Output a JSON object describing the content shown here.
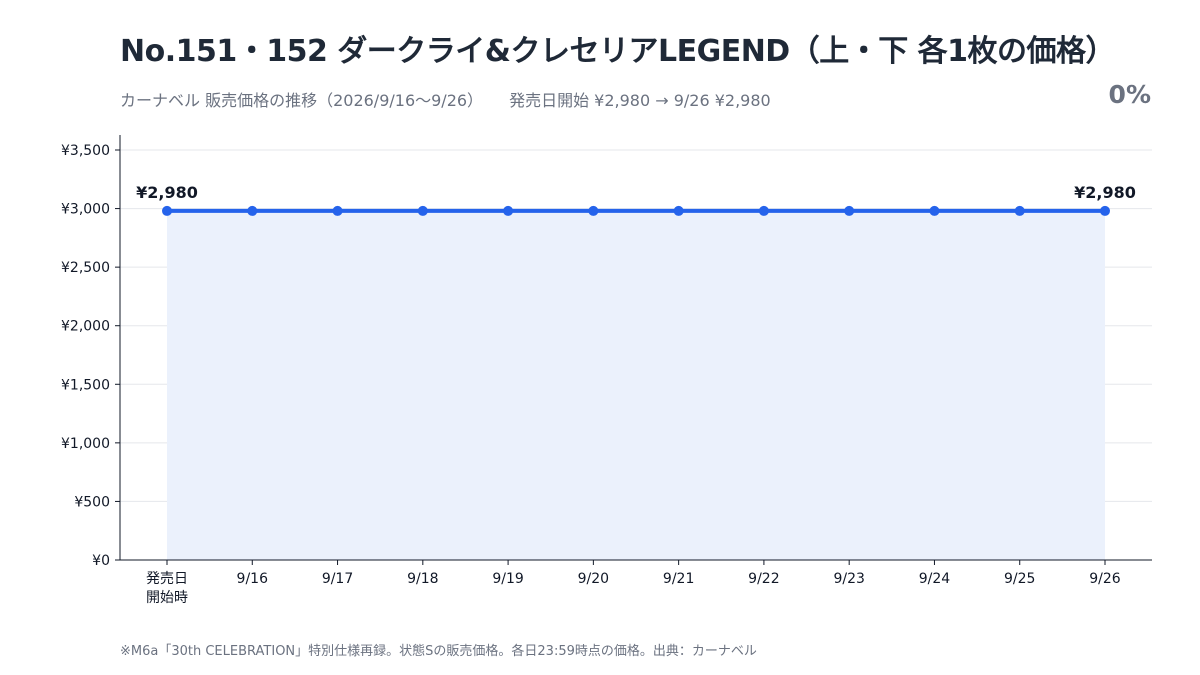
{
  "header": {
    "title": "No.151・152 ダークライ&クレセリアLEGEND（上・下 各1枚の価格）",
    "subtitle": "カーナベル 販売価格の推移（2026/9/16〜9/26）",
    "price_summary": "発売日開始 ¥2,980 → 9/26 ¥2,980",
    "change_percent": "0%"
  },
  "footer": {
    "note": "※M6a「30th CELEBRATION」特別仕様再録。状態Sの販売価格。各日23:59時点の価格。出典：カーナベル"
  },
  "colors": {
    "line": "#2563eb",
    "area": "#ebf1fc",
    "grid": "#e5e7eb",
    "axis": "#111827"
  },
  "chart_data": {
    "type": "line",
    "categories": [
      "発売日\n開始時",
      "9/16",
      "9/17",
      "9/18",
      "9/19",
      "9/20",
      "9/21",
      "9/22",
      "9/23",
      "9/24",
      "9/25",
      "9/26"
    ],
    "series": [
      {
        "values": [
          2980,
          2980,
          2980,
          2980,
          2980,
          2980,
          2980,
          2980,
          2980,
          2980,
          2980,
          2980
        ]
      }
    ],
    "ylim": [
      0,
      3500
    ],
    "yticks": [
      0,
      500,
      1000,
      1500,
      2000,
      2500,
      3000,
      3500
    ],
    "ytick_labels": [
      "¥0",
      "¥500",
      "¥1,000",
      "¥1,500",
      "¥2,000",
      "¥2,500",
      "¥3,000",
      "¥3,500"
    ],
    "data_labels": [
      {
        "index": 0,
        "text": "¥2,980"
      },
      {
        "index": 11,
        "text": "¥2,980"
      }
    ],
    "grid": true,
    "area_fill": true,
    "legend": "none"
  }
}
